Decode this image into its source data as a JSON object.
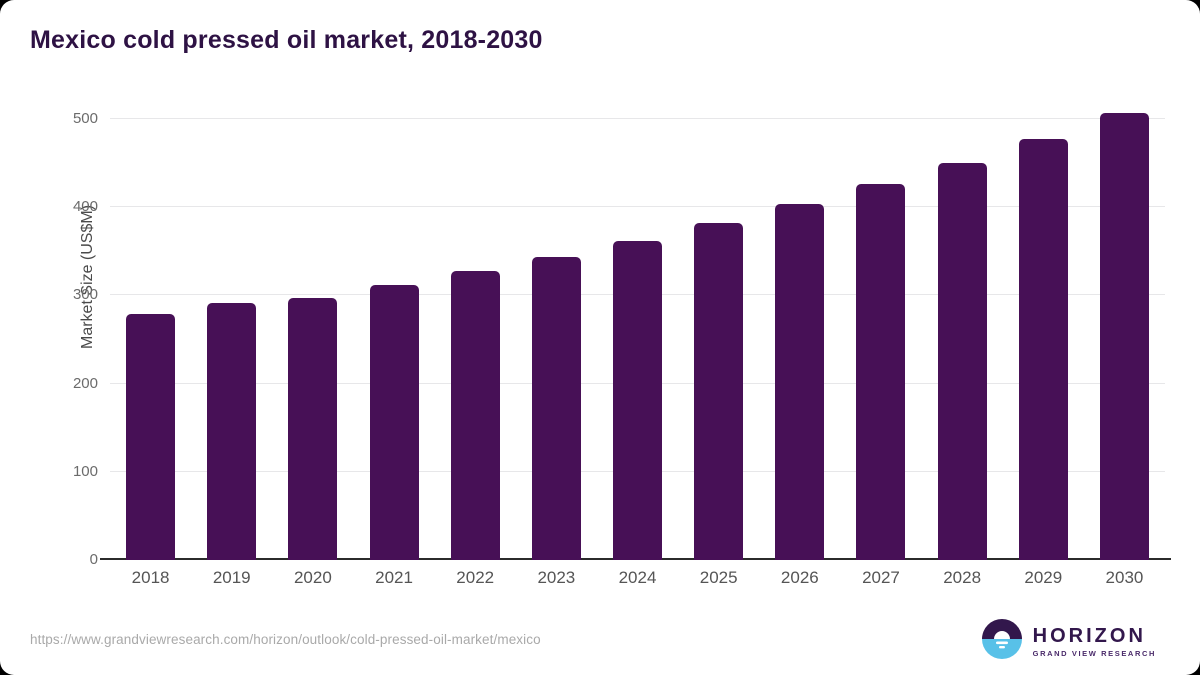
{
  "title": "Mexico cold pressed oil market, 2018-2030",
  "footer": {
    "source_url": "https://www.grandviewresearch.com/horizon/outlook/cold-pressed-oil-market/mexico"
  },
  "logo": {
    "name": "HORIZON",
    "subtitle": "GRAND VIEW RESEARCH",
    "icon": "horizon-sun-circle-icon"
  },
  "colors": {
    "bar": "#471056",
    "title_text": "#2e1244",
    "gridline": "#e7e7e9",
    "axis_line": "#2b2b2b",
    "tick_label": "#6b6b6b",
    "footer_text": "#a9a9a9",
    "logo_dark_purple": "#32174c",
    "logo_light_blue": "#58c1e8"
  },
  "chart_data": {
    "type": "bar",
    "title": "Mexico cold pressed oil market, 2018-2030",
    "categories": [
      "2018",
      "2019",
      "2020",
      "2021",
      "2022",
      "2023",
      "2024",
      "2025",
      "2026",
      "2027",
      "2028",
      "2029",
      "2030"
    ],
    "values": [
      279,
      291,
      297,
      312,
      328,
      344,
      362,
      382,
      404,
      426,
      450,
      478,
      507
    ],
    "xlabel": "",
    "ylabel": "Market Size (US$M)",
    "ylim": [
      0,
      516
    ],
    "yticks": [
      0,
      100,
      200,
      300,
      400,
      500
    ],
    "grid": "horizontal-only",
    "legend": false,
    "bar_color": "#471056"
  }
}
